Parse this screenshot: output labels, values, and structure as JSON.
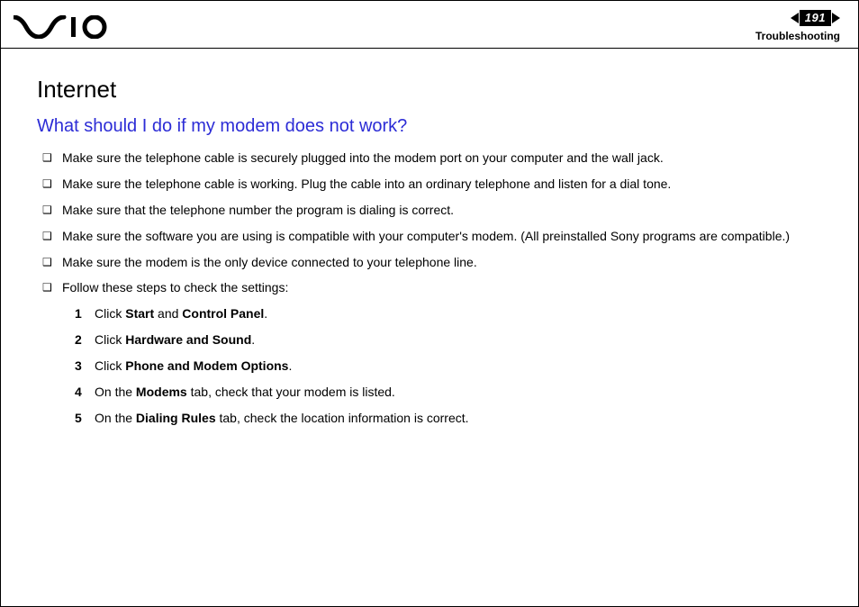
{
  "header": {
    "page_number": "191",
    "section": "Troubleshooting"
  },
  "colors": {
    "question_color": "#2c2cd6",
    "text_color": "#000000",
    "background": "#ffffff"
  },
  "content": {
    "title": "Internet",
    "question": "What should I do if my modem does not work?",
    "bullets": [
      "Make sure the telephone cable is securely plugged into the modem port on your computer and the wall jack.",
      "Make sure the telephone cable is working. Plug the cable into an ordinary telephone and listen for a dial tone.",
      "Make sure that the telephone number the program is dialing is correct.",
      "Make sure the software you are using is compatible with your computer's modem. (All preinstalled Sony programs are compatible.)",
      "Make sure the modem is the only device connected to your telephone line.",
      "Follow these steps to check the settings:"
    ],
    "steps": [
      {
        "n": "1",
        "pre": "Click ",
        "bold": [
          "Start",
          "Control Panel"
        ],
        "join": " and ",
        "post": "."
      },
      {
        "n": "2",
        "pre": "Click ",
        "bold": [
          "Hardware and Sound"
        ],
        "join": "",
        "post": "."
      },
      {
        "n": "3",
        "pre": "Click ",
        "bold": [
          "Phone and Modem Options"
        ],
        "join": "",
        "post": "."
      },
      {
        "n": "4",
        "pre": "On the ",
        "bold": [
          "Modems"
        ],
        "join": "",
        "post": " tab, check that your modem is listed."
      },
      {
        "n": "5",
        "pre": "On the ",
        "bold": [
          "Dialing Rules"
        ],
        "join": "",
        "post": " tab, check the location information is correct."
      }
    ]
  }
}
